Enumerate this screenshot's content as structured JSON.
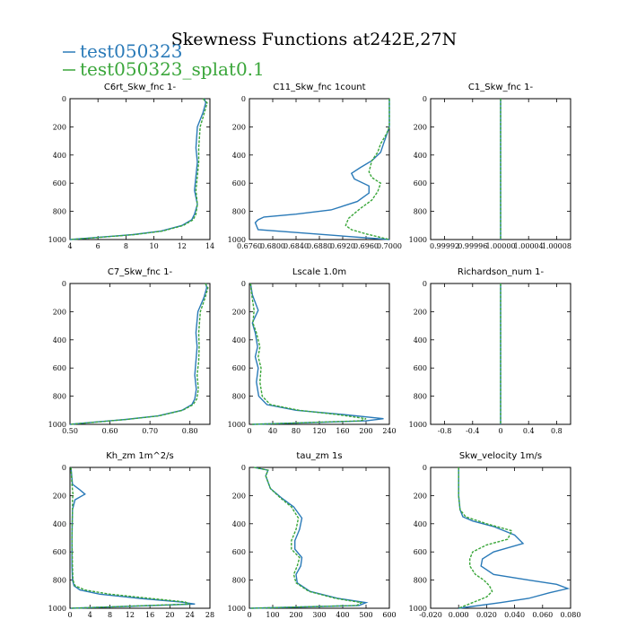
{
  "title": "Skewness Functions at242E,27N",
  "legend": [
    {
      "name": "test050323",
      "color": "#2a7ab8"
    },
    {
      "name": "test050323_splat0.1",
      "color": "#3aa63a"
    }
  ],
  "chart_data": [
    {
      "type": "line",
      "title": "C6rt_Skw_fnc 1-",
      "xlim": [
        4,
        14
      ],
      "ylim": [
        1000,
        0
      ],
      "xticks": [
        "4",
        "6",
        "8",
        "10",
        "12",
        "14"
      ],
      "xticks_v": [
        4,
        6,
        8,
        10,
        12,
        14
      ],
      "yticks": [
        "0",
        "200",
        "400",
        "600",
        "800",
        "1000"
      ],
      "yticks_v": [
        0,
        200,
        400,
        600,
        800,
        1000
      ],
      "series": [
        {
          "name": "test050323",
          "x": [
            13.6,
            13.7,
            13.5,
            13.1,
            13.0,
            13.1,
            13.0,
            12.9,
            13.1,
            12.9,
            12.7,
            12.0,
            10.5,
            8.5,
            6.0,
            4.0
          ],
          "y": [
            0,
            30,
            100,
            200,
            350,
            450,
            550,
            650,
            750,
            820,
            860,
            900,
            940,
            965,
            985,
            1000
          ]
        },
        {
          "name": "test050323_splat0.1",
          "x": [
            13.5,
            13.8,
            13.6,
            13.3,
            13.2,
            13.2,
            13.1,
            13.0,
            13.1,
            13.0,
            12.8,
            12.1,
            10.6,
            8.6,
            6.1,
            4.0
          ],
          "y": [
            0,
            30,
            100,
            200,
            350,
            450,
            550,
            650,
            750,
            820,
            860,
            900,
            940,
            965,
            985,
            1000
          ]
        }
      ]
    },
    {
      "type": "line",
      "title": "C11_Skw_fnc 1count",
      "xlim": [
        0.676,
        0.7
      ],
      "ylim": [
        1000,
        0
      ],
      "xticks": [
        "0.6760",
        "0.6800",
        "0.6840",
        "0.6880",
        "0.6920",
        "0.6960",
        "0.7000"
      ],
      "xticks_v": [
        0.676,
        0.68,
        0.684,
        0.688,
        0.692,
        0.696,
        0.7
      ],
      "yticks": [
        "0",
        "200",
        "400",
        "600",
        "800",
        "1000"
      ],
      "yticks_v": [
        0,
        200,
        400,
        600,
        800,
        1000
      ],
      "series": [
        {
          "name": "test050323",
          "x": [
            0.7,
            0.7,
            0.6995,
            0.699,
            0.6985,
            0.697,
            0.695,
            0.6935,
            0.694,
            0.6965,
            0.6965,
            0.6945,
            0.69,
            0.684,
            0.6785,
            0.6775,
            0.677,
            0.6775,
            0.7
          ],
          "y": [
            0,
            200,
            260,
            320,
            380,
            440,
            490,
            530,
            570,
            620,
            670,
            730,
            790,
            820,
            840,
            860,
            880,
            930,
            1000
          ]
        },
        {
          "name": "test050323_splat0.1",
          "x": [
            0.7,
            0.7,
            0.6995,
            0.6985,
            0.698,
            0.697,
            0.6965,
            0.697,
            0.6985,
            0.698,
            0.697,
            0.695,
            0.693,
            0.6925,
            0.6935,
            0.696,
            0.7
          ],
          "y": [
            0,
            200,
            250,
            320,
            380,
            440,
            520,
            560,
            600,
            660,
            720,
            780,
            850,
            900,
            930,
            960,
            1000
          ]
        }
      ]
    },
    {
      "type": "line",
      "title": "C1_Skw_fnc 1-",
      "xlim": [
        0.9999,
        1.0001
      ],
      "ylim": [
        1000,
        0
      ],
      "xticks": [
        "0.99992",
        "0.99996",
        "1.00000",
        "1.00004",
        "1.00008"
      ],
      "xticks_v": [
        0.99992,
        0.99996,
        1.0,
        1.00004,
        1.00008
      ],
      "yticks": [
        "0",
        "200",
        "400",
        "600",
        "800",
        "1000"
      ],
      "yticks_v": [
        0,
        200,
        400,
        600,
        800,
        1000
      ],
      "series": [
        {
          "name": "test050323",
          "x": [
            1.0,
            1.0
          ],
          "y": [
            0,
            1000
          ]
        },
        {
          "name": "test050323_splat0.1",
          "x": [
            1.0,
            1.0
          ],
          "y": [
            0,
            1000
          ]
        }
      ]
    },
    {
      "type": "line",
      "title": "C7_Skw_fnc 1-",
      "xlim": [
        0.5,
        0.85
      ],
      "ylim": [
        1000,
        0
      ],
      "xticks": [
        "0.50",
        "0.60",
        "0.70",
        "0.80"
      ],
      "xticks_v": [
        0.5,
        0.6,
        0.7,
        0.8
      ],
      "yticks": [
        "0",
        "200",
        "400",
        "600",
        "800",
        "1000"
      ],
      "yticks_v": [
        0,
        200,
        400,
        600,
        800,
        1000
      ],
      "series": [
        {
          "name": "test050323",
          "x": [
            0.84,
            0.842,
            0.835,
            0.82,
            0.815,
            0.818,
            0.815,
            0.812,
            0.816,
            0.812,
            0.805,
            0.78,
            0.72,
            0.64,
            0.56,
            0.5
          ],
          "y": [
            0,
            30,
            100,
            200,
            350,
            450,
            550,
            650,
            750,
            820,
            860,
            900,
            940,
            965,
            985,
            1000
          ]
        },
        {
          "name": "test050323_splat0.1",
          "x": [
            0.838,
            0.845,
            0.838,
            0.826,
            0.822,
            0.823,
            0.822,
            0.818,
            0.821,
            0.817,
            0.808,
            0.782,
            0.722,
            0.642,
            0.562,
            0.5
          ],
          "y": [
            0,
            30,
            100,
            200,
            350,
            450,
            550,
            650,
            750,
            820,
            860,
            900,
            940,
            965,
            985,
            1000
          ]
        }
      ]
    },
    {
      "type": "line",
      "title": "Lscale 1.0m",
      "xlim": [
        0,
        240
      ],
      "ylim": [
        1000,
        0
      ],
      "xticks": [
        "0",
        "40",
        "80",
        "120",
        "160",
        "200",
        "240"
      ],
      "xticks_v": [
        0,
        40,
        80,
        120,
        160,
        200,
        240
      ],
      "yticks": [
        "0",
        "200",
        "400",
        "600",
        "800",
        "1000"
      ],
      "yticks_v": [
        0,
        200,
        400,
        600,
        800,
        1000
      ],
      "series": [
        {
          "name": "test050323",
          "x": [
            2,
            5,
            15,
            5,
            10,
            14,
            10,
            15,
            12,
            16,
            30,
            80,
            160,
            230,
            200,
            5
          ],
          "y": [
            0,
            80,
            190,
            280,
            350,
            450,
            520,
            600,
            700,
            800,
            860,
            900,
            930,
            960,
            975,
            1000
          ]
        },
        {
          "name": "test050323_splat0.1",
          "x": [
            2,
            4,
            8,
            6,
            12,
            18,
            15,
            20,
            18,
            22,
            36,
            85,
            150,
            200,
            190,
            5
          ],
          "y": [
            0,
            80,
            190,
            280,
            350,
            450,
            520,
            600,
            700,
            800,
            860,
            900,
            930,
            960,
            975,
            1000
          ]
        }
      ]
    },
    {
      "type": "line",
      "title": "Richardson_num 1-",
      "xlim": [
        -1.0,
        1.0
      ],
      "ylim": [
        1000,
        0
      ],
      "xticks": [
        "-0.8",
        "-0.4",
        "0",
        "0.4",
        "0.8"
      ],
      "xticks_v": [
        -0.8,
        -0.4,
        0,
        0.4,
        0.8
      ],
      "yticks": [
        "0",
        "200",
        "400",
        "600",
        "800",
        "1000"
      ],
      "yticks_v": [
        0,
        200,
        400,
        600,
        800,
        1000
      ],
      "series": [
        {
          "name": "test050323",
          "x": [
            0,
            0
          ],
          "y": [
            0,
            1000
          ]
        },
        {
          "name": "test050323_splat0.1",
          "x": [
            0,
            0
          ],
          "y": [
            0,
            1000
          ]
        }
      ]
    },
    {
      "type": "line",
      "title": "Kh_zm 1m^2/s",
      "xlim": [
        0,
        28
      ],
      "ylim": [
        1000,
        0
      ],
      "xticks": [
        "0",
        "4",
        "8",
        "12",
        "16",
        "20",
        "24",
        "28"
      ],
      "xticks_v": [
        0,
        4,
        8,
        12,
        16,
        20,
        24,
        28
      ],
      "yticks": [
        "0",
        "200",
        "400",
        "600",
        "800",
        "1000"
      ],
      "yticks_v": [
        0,
        200,
        400,
        600,
        800,
        1000
      ],
      "series": [
        {
          "name": "test050323",
          "x": [
            0.2,
            0.5,
            2.0,
            3.0,
            1.0,
            0.5,
            0.4,
            0.4,
            0.5,
            0.8,
            2.0,
            6.0,
            14.0,
            22.0,
            25.0,
            0.2
          ],
          "y": [
            0,
            120,
            160,
            190,
            230,
            300,
            500,
            700,
            800,
            840,
            870,
            900,
            930,
            955,
            970,
            1000
          ]
        },
        {
          "name": "test050323_splat0.1",
          "x": [
            0.2,
            0.4,
            0.5,
            0.6,
            0.5,
            0.5,
            0.4,
            0.5,
            0.6,
            1.0,
            3.0,
            8.0,
            16.0,
            23.0,
            24.0,
            0.2
          ],
          "y": [
            0,
            120,
            160,
            190,
            230,
            300,
            500,
            700,
            800,
            840,
            870,
            900,
            930,
            955,
            970,
            1000
          ]
        }
      ]
    },
    {
      "type": "line",
      "title": "tau_zm 1s",
      "xlim": [
        0,
        600
      ],
      "ylim": [
        1000,
        0
      ],
      "xticks": [
        "0",
        "100",
        "200",
        "300",
        "400",
        "500",
        "600"
      ],
      "xticks_v": [
        0,
        100,
        200,
        300,
        400,
        500,
        600
      ],
      "yticks": [
        "0",
        "200",
        "400",
        "600",
        "800",
        "1000"
      ],
      "yticks_v": [
        0,
        200,
        400,
        600,
        800,
        1000
      ],
      "series": [
        {
          "name": "test050323",
          "x": [
            20,
            80,
            70,
            90,
            140,
            190,
            225,
            215,
            195,
            195,
            225,
            220,
            200,
            205,
            260,
            380,
            500,
            470,
            5
          ],
          "y": [
            0,
            20,
            60,
            150,
            220,
            280,
            360,
            440,
            520,
            580,
            640,
            700,
            760,
            820,
            880,
            930,
            960,
            980,
            1000
          ]
        },
        {
          "name": "test050323_splat0.1",
          "x": [
            20,
            80,
            70,
            90,
            135,
            180,
            210,
            200,
            180,
            180,
            215,
            205,
            190,
            200,
            255,
            370,
            480,
            460,
            5
          ],
          "y": [
            0,
            20,
            60,
            150,
            220,
            280,
            360,
            440,
            520,
            580,
            640,
            700,
            760,
            820,
            880,
            930,
            960,
            980,
            1000
          ]
        }
      ]
    },
    {
      "type": "line",
      "title": "Skw_velocity 1m/s",
      "xlim": [
        -0.02,
        0.08
      ],
      "ylim": [
        1000,
        0
      ],
      "xticks": [
        "-0.020",
        "0.000",
        "0.020",
        "0.040",
        "0.060",
        "0.080"
      ],
      "xticks_v": [
        -0.02,
        0.0,
        0.02,
        0.04,
        0.06,
        0.08
      ],
      "yticks": [
        "0",
        "200",
        "400",
        "600",
        "800",
        "1000"
      ],
      "yticks_v": [
        0,
        200,
        400,
        600,
        800,
        1000
      ],
      "series": [
        {
          "name": "test050323",
          "x": [
            0.0,
            0.0,
            0.001,
            0.003,
            0.01,
            0.025,
            0.04,
            0.046,
            0.025,
            0.017,
            0.016,
            0.025,
            0.05,
            0.07,
            0.078,
            0.065,
            0.05,
            0.03,
            0.0
          ],
          "y": [
            0,
            200,
            300,
            350,
            380,
            420,
            480,
            540,
            600,
            650,
            700,
            760,
            800,
            830,
            860,
            890,
            930,
            960,
            1000
          ]
        },
        {
          "name": "test050323_splat0.1",
          "x": [
            0.0,
            0.0,
            0.001,
            0.005,
            0.02,
            0.038,
            0.035,
            0.02,
            0.01,
            0.008,
            0.008,
            0.012,
            0.018,
            0.022,
            0.024,
            0.02,
            0.01,
            0.0
          ],
          "y": [
            0,
            200,
            300,
            350,
            400,
            450,
            510,
            550,
            600,
            650,
            700,
            760,
            800,
            840,
            880,
            920,
            960,
            1000
          ]
        }
      ]
    }
  ]
}
